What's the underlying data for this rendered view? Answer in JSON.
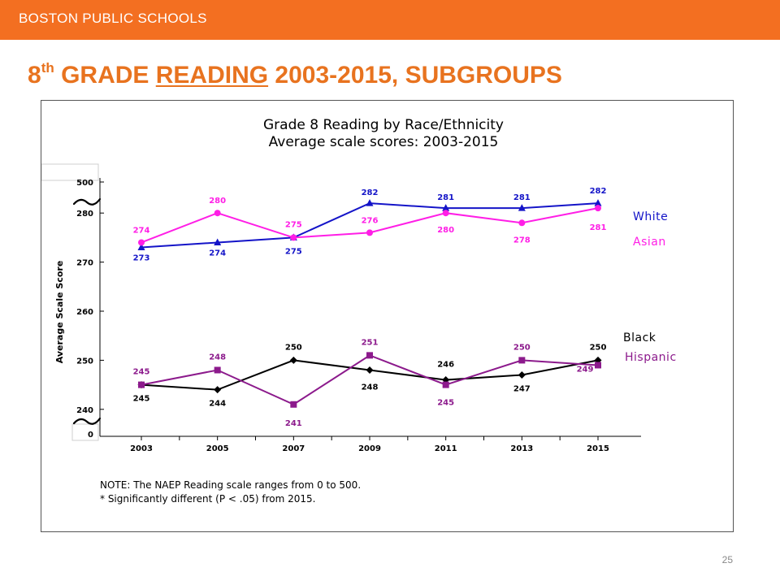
{
  "header": {
    "org": "BOSTON PUBLIC SCHOOLS",
    "title_num": "8",
    "title_sup": "th",
    "title_a": " GRADE ",
    "title_b": "READING",
    "title_c": " 2003-2015, SUBGROUPS"
  },
  "footer": {
    "page": "25"
  },
  "chart_data": {
    "type": "line",
    "title": "Grade 8 Reading by Race/Ethnicity",
    "subtitle": "Average scale scores: 2003-2015",
    "xlabel": "",
    "ylabel": "Average Scale Score",
    "categories": [
      "2003",
      "2005",
      "2007",
      "2009",
      "2011",
      "2013",
      "2015"
    ],
    "ylim": [
      235,
      285
    ],
    "yticks": [
      240,
      250,
      260,
      270,
      280
    ],
    "axis_break_labels": {
      "top": "500",
      "bottom": "0"
    },
    "grid": false,
    "legend": "right-end labels",
    "series": [
      {
        "name": "White",
        "color": "#1414c8",
        "marker": "triangle",
        "values": [
          273,
          274,
          275,
          282,
          281,
          281,
          282
        ],
        "labels": [
          "273",
          "274",
          "275",
          "282",
          "281",
          "281",
          "282"
        ]
      },
      {
        "name": "Asian",
        "color": "#ff1ee6",
        "marker": "circle",
        "values": [
          274,
          280,
          275,
          276,
          280,
          278,
          281
        ],
        "labels": [
          "274",
          "280",
          "275",
          "276",
          "280",
          "278",
          "281"
        ]
      },
      {
        "name": "Black",
        "color": "#000000",
        "marker": "diamond",
        "values": [
          245,
          244,
          250,
          248,
          246,
          247,
          250
        ],
        "labels": [
          "245",
          "244",
          "250",
          "248",
          "246",
          "247",
          "250"
        ]
      },
      {
        "name": "Hispanic",
        "color": "#8c1a8c",
        "marker": "square",
        "values": [
          245,
          248,
          241,
          251,
          245,
          250,
          249
        ],
        "labels": [
          "245",
          "248",
          "241",
          "251",
          "245",
          "250",
          "249"
        ]
      }
    ],
    "notes": [
      "NOTE: The NAEP Reading scale ranges from 0 to 500.",
      "* Significantly different (P < .05) from 2015."
    ]
  }
}
